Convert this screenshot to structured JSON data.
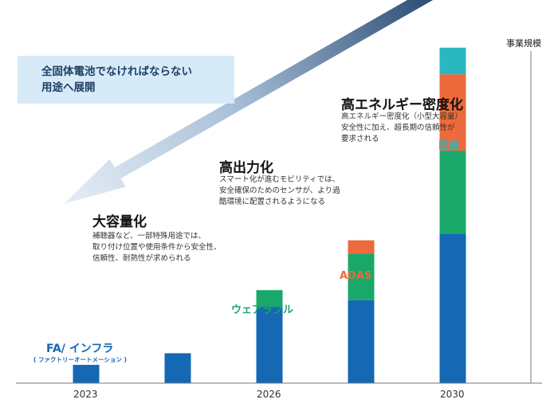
{
  "colors": {
    "blue": "#1468b4",
    "green": "#1aa86a",
    "orange": "#ec6a3b",
    "teal": "#2ab7c0",
    "arrow_dark": "#24456e",
    "arrow_light": "#e6eef7",
    "note_bg": "#d6ebf7"
  },
  "note": {
    "line1": "全固体電池でなければならない",
    "line2": "用途へ展開"
  },
  "axis": {
    "ylabel": "事業規模"
  },
  "phases": [
    {
      "title": "大容量化",
      "desc": "補聴器など、一部特殊用途では、\n取り付け位置や使用条件から安全性、\n信頼性、耐熱性が求められる"
    },
    {
      "title": "高出力化",
      "desc": "スマート化が進むモビリティでは、\n安全確保のためのセンサが、より過\n酷環境に配置されるようになる"
    },
    {
      "title": "高エネルギー密度化",
      "desc": "高エネルギー密度化（小型大容量）\n安全性に加え、超長期の信頼性が\n要求される"
    }
  ],
  "category_labels": {
    "fa": "FA/ インフラ",
    "fa_sub": "( ファクトリーオートメーション )",
    "wearable": "ウェアラブル",
    "adas": "ADAS",
    "medical": "医療"
  },
  "chart_data": {
    "type": "bar",
    "stacked": true,
    "ylabel": "事業規模",
    "tick_labels": [
      "2023",
      "",
      "2026",
      "",
      "2030"
    ],
    "ylim": [
      0,
      100
    ],
    "grid": false,
    "series": [
      {
        "name": "FA/ インフラ",
        "color": "#1468b4",
        "values": [
          5.5,
          9,
          23,
          25,
          45
        ]
      },
      {
        "name": "ウェアラブル",
        "color": "#1aa86a",
        "values": [
          0,
          0,
          5,
          14,
          25
        ]
      },
      {
        "name": "ADAS",
        "color": "#ec6a3b",
        "values": [
          0,
          0,
          0,
          4,
          23
        ]
      },
      {
        "name": "医療",
        "color": "#2ab7c0",
        "values": [
          0,
          0,
          0,
          0,
          8
        ]
      }
    ]
  }
}
